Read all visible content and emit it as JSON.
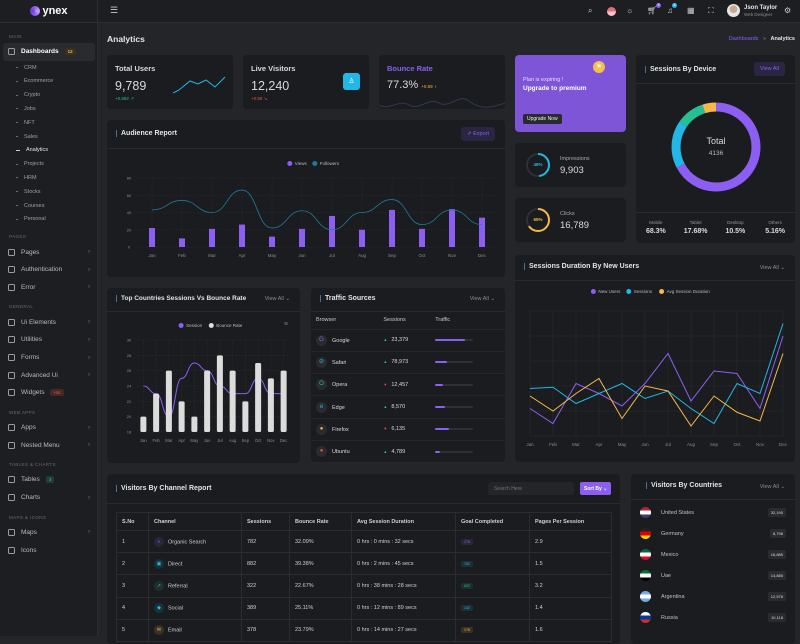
{
  "brand": {
    "name": "ynex"
  },
  "header": {
    "user_name": "Json Taylor",
    "user_role": "Web Designer",
    "cart_count": "5",
    "notif_count": "8"
  },
  "sidebar": {
    "main_label": "MAIN",
    "dashboards": {
      "label": "Dashboards",
      "badge": "12"
    },
    "sub_items": [
      "CRM",
      "Ecommerce",
      "Crypto",
      "Jobs",
      "NFT",
      "Sales",
      "Analytics",
      "Projects",
      "HRM",
      "Stocks",
      "Courses",
      "Personal"
    ],
    "active_sub": "Analytics",
    "sections": [
      {
        "label": "PAGES",
        "items": [
          {
            "label": "Pages",
            "icon": "file-icon",
            "chevron": true
          },
          {
            "label": "Authentication",
            "icon": "user-lock-icon",
            "chevron": true
          },
          {
            "label": "Error",
            "icon": "warning-icon",
            "chevron": true
          }
        ]
      },
      {
        "label": "GENERAL",
        "items": [
          {
            "label": "Ui Elements",
            "icon": "box-icon",
            "chevron": true
          },
          {
            "label": "Utilities",
            "icon": "tools-icon",
            "chevron": true
          },
          {
            "label": "Forms",
            "icon": "form-icon",
            "chevron": true
          },
          {
            "label": "Advanced Ui",
            "icon": "layers-icon",
            "chevron": true
          },
          {
            "label": "Widgets",
            "icon": "gift-icon",
            "badge": "Hot",
            "badge_color": "#e6533c"
          }
        ]
      },
      {
        "label": "WEB APPS",
        "items": [
          {
            "label": "Apps",
            "icon": "grid-icon",
            "chevron": true
          },
          {
            "label": "Nested Menu",
            "icon": "nested-icon",
            "chevron": true
          }
        ]
      },
      {
        "label": "TABLES & CHARTS",
        "items": [
          {
            "label": "Tables",
            "icon": "table-icon",
            "badge": "3",
            "badge_color": "#26bf94"
          },
          {
            "label": "Charts",
            "icon": "chart-icon",
            "chevron": true
          }
        ]
      },
      {
        "label": "MAPS & ICONS",
        "items": [
          {
            "label": "Maps",
            "icon": "map-pin-icon",
            "chevron": true
          },
          {
            "label": "Icons",
            "icon": "icons-icon"
          }
        ]
      }
    ]
  },
  "page": {
    "title": "Analytics",
    "breadcrumb": [
      "Dashboards",
      "Analytics"
    ]
  },
  "stats": {
    "total_users": {
      "title": "Total Users",
      "value": "9,789",
      "change": "+0.892"
    },
    "live_visitors": {
      "title": "Live Visitors",
      "value": "12,240",
      "change": "+0.59"
    },
    "bounce_rate": {
      "title": "Bounce Rate",
      "value": "77.3%",
      "change": "+0.59"
    }
  },
  "premium": {
    "line1": "Plan is expiring !",
    "line2": "Upgrade to premium",
    "button": "Upgrade Now"
  },
  "impressions": {
    "label": "Impressions",
    "value": "9,903",
    "percent_label": "48%",
    "percent": 48
  },
  "clicks": {
    "label": "Clicks",
    "value": "16,789",
    "percent_label": "65%",
    "percent": 65
  },
  "colors": {
    "primary": "#8c5ff2",
    "secondary": "#23b7e5",
    "success": "#26bf94",
    "warning": "#f5b849",
    "danger": "#e6533c"
  },
  "sessions_device": {
    "title": "Sessions By Device",
    "view_all": "View All",
    "total_label": "Total",
    "total": "4136",
    "items": [
      {
        "label": "Mobile",
        "value": "68.3%",
        "pct": 68.3,
        "color": "#8c5ff2"
      },
      {
        "label": "Tablet",
        "value": "17.68%",
        "pct": 17.68,
        "color": "#23b7e5"
      },
      {
        "label": "Desktop",
        "value": "10.5%",
        "pct": 10.5,
        "color": "#26bf94"
      },
      {
        "label": "Others",
        "value": "5.16%",
        "pct": 5.16,
        "color": "#f5b849"
      }
    ]
  },
  "chart_data": [
    {
      "type": "bar",
      "title": "Audience Report",
      "categories": [
        "Jan",
        "Feb",
        "Mar",
        "Apr",
        "May",
        "Jun",
        "Jul",
        "Aug",
        "Sep",
        "Oct",
        "Nov",
        "Dec"
      ],
      "series": [
        {
          "name": "Views",
          "type": "bar",
          "color": "#8c5ff2",
          "values": [
            22,
            10,
            21,
            26,
            12,
            21,
            36,
            20,
            43,
            21,
            44,
            34
          ]
        },
        {
          "name": "Followers",
          "type": "line",
          "color": "#1e7c9a",
          "values": [
            43,
            54,
            40,
            66,
            22,
            42,
            20,
            40,
            55,
            26,
            43,
            26
          ]
        }
      ],
      "ylim": [
        0,
        80
      ],
      "yticks": [
        0,
        20,
        40,
        60,
        80
      ],
      "grid": true,
      "legend": "top"
    },
    {
      "type": "bar",
      "title": "Top Countries Sessions Vs Bounce Rate",
      "categories": [
        "Jan",
        "Feb",
        "Mar",
        "Apr",
        "May",
        "Jun",
        "Jul",
        "Aug",
        "Sep",
        "Oct",
        "Nov",
        "Dec"
      ],
      "series": [
        {
          "name": "Session",
          "type": "line",
          "color": "#8c5ff2",
          "values": [
            24,
            23,
            20,
            25,
            27,
            26,
            24,
            23,
            23,
            25,
            23,
            23
          ]
        },
        {
          "name": "Bounce Rate",
          "type": "bar",
          "color": "#dcdcdc",
          "values": [
            20,
            23,
            26,
            22,
            20,
            26,
            28,
            26,
            22,
            27,
            25,
            26
          ]
        }
      ],
      "ylim": [
        18,
        30
      ],
      "yticks": [
        18,
        20,
        22,
        24,
        26,
        28,
        30
      ],
      "grid": true,
      "legend": "top"
    },
    {
      "type": "line",
      "title": "Sessions Duration By New Users",
      "categories": [
        "Jan",
        "Feb",
        "Mar",
        "Apr",
        "May",
        "Jun",
        "Jul",
        "Aug",
        "Sep",
        "Oct",
        "Nov",
        "Dec"
      ],
      "series": [
        {
          "name": "New Users",
          "color": "#8c5ff2",
          "values": [
            11,
            5,
            21,
            17,
            12,
            21,
            33,
            14,
            26,
            25,
            11,
            40
          ]
        },
        {
          "name": "Sessions",
          "color": "#23b7e5",
          "values": [
            19,
            19.5,
            13,
            17,
            21,
            15,
            18,
            11,
            5,
            21,
            17,
            45
          ]
        },
        {
          "name": "Avg Session Duration",
          "color": "#f5b849",
          "values": [
            16,
            10,
            17,
            23,
            7,
            20,
            18,
            4,
            16,
            9.5,
            6,
            33
          ]
        }
      ],
      "ylim": [
        0,
        50
      ],
      "grid": true,
      "legend": "top"
    }
  ],
  "audience": {
    "export": "Export",
    "view_all": "View All"
  },
  "traffic": {
    "title": "Traffic Sources",
    "view_all": "View All",
    "headers": [
      "Browser",
      "Sessions",
      "Traffic"
    ],
    "rows": [
      {
        "name": "Google",
        "sessions": "23,379",
        "trend": "up",
        "traffic": 0.78,
        "color": "#8c5ff2",
        "icon": "G"
      },
      {
        "name": "Safari",
        "sessions": "78,973",
        "trend": "up",
        "traffic": 0.32,
        "color": "#23b7e5",
        "icon": "⊘"
      },
      {
        "name": "Opera",
        "sessions": "12,457",
        "trend": "down",
        "traffic": 0.2,
        "color": "#26bf94",
        "icon": "O"
      },
      {
        "name": "Edge",
        "sessions": "8,570",
        "trend": "up",
        "traffic": 0.25,
        "color": "#23b7e5",
        "icon": "e"
      },
      {
        "name": "Firefox",
        "sessions": "6,135",
        "trend": "down",
        "traffic": 0.35,
        "color": "#f5b849",
        "icon": "●"
      },
      {
        "name": "Ubuntu",
        "sessions": "4,789",
        "trend": "up",
        "traffic": 0.12,
        "color": "#e6533c",
        "icon": "●"
      }
    ]
  },
  "top_countries": {
    "view_all": "View All"
  },
  "sessions_duration": {
    "view_all": "View All"
  },
  "channel": {
    "title": "Visitors By Channel Report",
    "search_placeholder": "Search Here",
    "sort": "Sort By",
    "headers": [
      "S.No",
      "Channel",
      "Sessions",
      "Bounce Rate",
      "Avg Session Duration",
      "Goal Completed",
      "Pages Per Session"
    ],
    "rows": [
      {
        "sno": "1",
        "channel": "Organic Search",
        "sessions": "782",
        "bounce": "32.09%",
        "avg": "0 hrs : 0 mins : 32 secs",
        "goal": "276",
        "pages": "2.9",
        "color": "#8c5ff2",
        "icon": "⌕"
      },
      {
        "sno": "2",
        "channel": "Direct",
        "sessions": "882",
        "bounce": "39.38%",
        "avg": "0 hrs : 2 mins : 45 secs",
        "goal": "782",
        "pages": "1.5",
        "color": "#23b7e5",
        "icon": "▣"
      },
      {
        "sno": "3",
        "channel": "Referral",
        "sessions": "322",
        "bounce": "22.67%",
        "avg": "0 hrs : 38 mins : 28 secs",
        "goal": "622",
        "pages": "3.2",
        "color": "#26bf94",
        "icon": "➚"
      },
      {
        "sno": "4",
        "channel": "Social",
        "sessions": "389",
        "bounce": "25.11%",
        "avg": "0 hrs : 12 mins : 89 secs",
        "goal": "142",
        "pages": "1.4",
        "color": "#23b7e5",
        "icon": "◆"
      },
      {
        "sno": "5",
        "channel": "Email",
        "sessions": "378",
        "bounce": "23.79%",
        "avg": "0 hrs : 14 mins : 27 secs",
        "goal": "178",
        "pages": "1.6",
        "color": "#f5b849",
        "icon": "✉"
      }
    ]
  },
  "countries": {
    "title": "Visitors By Countries",
    "view_all": "View All",
    "rows": [
      {
        "name": "United States",
        "count": "32,190",
        "flag": [
          "#b22234",
          "#fff",
          "#3c3b6e"
        ]
      },
      {
        "name": "Germany",
        "count": "8,798",
        "flag": [
          "#222",
          "#dd0000",
          "#ffce00"
        ]
      },
      {
        "name": "Mexico",
        "count": "16,885",
        "flag": [
          "#006847",
          "#fff",
          "#ce1126"
        ]
      },
      {
        "name": "Uae",
        "count": "14,885",
        "flag": [
          "#00732f",
          "#fff",
          "#000"
        ]
      },
      {
        "name": "Argentina",
        "count": "12,578",
        "flag": [
          "#74acdf",
          "#fff",
          "#74acdf"
        ]
      },
      {
        "name": "Russia",
        "count": "10,118",
        "flag": [
          "#fff",
          "#0039a6",
          "#d52b1e"
        ]
      }
    ]
  }
}
